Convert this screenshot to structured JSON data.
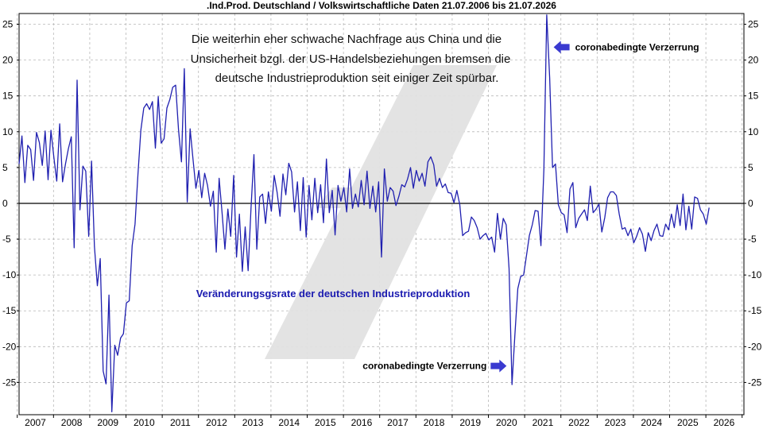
{
  "chart_data": {
    "type": "line",
    "title": ".Ind.Prod. Deutschland / Volkswirtschaftliche Daten 21.07.2006 bis 21.07.2026",
    "note_lines": [
      "Die weiterhin eher schwache Nachfrage aus China und die",
      "Unsicherheit bzgl. der US-Handelsbeziehungen bremsen die",
      "deutsche Industrieproduktion seit einiger Zeit spürbar."
    ],
    "series_label": "Veränderungsgsrate der deutschen Industrieproduktion",
    "annotations": [
      {
        "text": "coronabedingte Verzerrung",
        "x": 2021.3,
        "y": 21.8,
        "arrow": "left"
      },
      {
        "text": "coronabedingte Verzerrung",
        "x": 2020.0,
        "y": -22.7,
        "arrow": "right"
      }
    ],
    "xlim": [
      2006.55,
      2026.55
    ],
    "ylim": [
      -29.5,
      26.5
    ],
    "x_ticks": [
      {
        "label": "2007",
        "x": 2007.0
      },
      {
        "label": "2008",
        "x": 2008.0
      },
      {
        "label": "2009",
        "x": 2009.0
      },
      {
        "label": "2010",
        "x": 2010.0
      },
      {
        "label": "2011",
        "x": 2011.0
      },
      {
        "label": "2012",
        "x": 2012.0
      },
      {
        "label": "2013",
        "x": 2013.0
      },
      {
        "label": "2014",
        "x": 2014.0
      },
      {
        "label": "2015",
        "x": 2015.0
      },
      {
        "label": "2016",
        "x": 2016.0
      },
      {
        "label": "2017",
        "x": 2017.0
      },
      {
        "label": "2018",
        "x": 2018.0
      },
      {
        "label": "2019",
        "x": 2019.0
      },
      {
        "label": "2020",
        "x": 2020.0
      },
      {
        "label": "2021",
        "x": 2021.0
      },
      {
        "label": "2022",
        "x": 2022.0
      },
      {
        "label": "2023",
        "x": 2023.0
      },
      {
        "label": "2024",
        "x": 2024.0
      },
      {
        "label": "2025",
        "x": 2025.0
      },
      {
        "label": "2026",
        "x": 2026.0
      }
    ],
    "x_grid": [
      2006.5,
      2007.5,
      2008.5,
      2009.5,
      2010.5,
      2011.5,
      2012.5,
      2013.5,
      2014.5,
      2015.5,
      2016.5,
      2017.5,
      2018.5,
      2019.5,
      2020.5,
      2021.5,
      2022.5,
      2023.5,
      2024.5,
      2025.5,
      2026.5
    ],
    "y_ticks": [
      {
        "label": "25",
        "y": 25
      },
      {
        "label": "20",
        "y": 20
      },
      {
        "label": "15",
        "y": 15
      },
      {
        "label": "10",
        "y": 10
      },
      {
        "label": "5",
        "y": 5
      },
      {
        "label": "0",
        "y": 0
      },
      {
        "label": "-5",
        "y": -5
      },
      {
        "label": "-10",
        "y": -10
      },
      {
        "label": "-15",
        "y": -15
      },
      {
        "label": "-20",
        "y": -20
      },
      {
        "label": "-25",
        "y": -25
      }
    ],
    "grid": true,
    "zero_line": true,
    "line_color": "#2020b0",
    "series": [
      {
        "name": "",
        "points": [
          [
            2006.55,
            5.5
          ],
          [
            2006.63,
            9.4
          ],
          [
            2006.71,
            2.9
          ],
          [
            2006.79,
            8.1
          ],
          [
            2006.87,
            7.5
          ],
          [
            2006.95,
            3.2
          ],
          [
            2007.03,
            9.9
          ],
          [
            2007.11,
            8.5
          ],
          [
            2007.19,
            5.3
          ],
          [
            2007.27,
            10.1
          ],
          [
            2007.35,
            3.3
          ],
          [
            2007.43,
            10.2
          ],
          [
            2007.51,
            6.4
          ],
          [
            2007.59,
            3.1
          ],
          [
            2007.67,
            11.1
          ],
          [
            2007.75,
            3.0
          ],
          [
            2007.83,
            5.5
          ],
          [
            2007.91,
            7.6
          ],
          [
            2007.99,
            9.3
          ],
          [
            2008.07,
            -6.2
          ],
          [
            2008.15,
            17.2
          ],
          [
            2008.23,
            -0.9
          ],
          [
            2008.31,
            5.2
          ],
          [
            2008.39,
            4.5
          ],
          [
            2008.47,
            -4.6
          ],
          [
            2008.55,
            5.9
          ],
          [
            2008.63,
            -6.0
          ],
          [
            2008.71,
            -11.5
          ],
          [
            2008.79,
            -7.7
          ],
          [
            2008.87,
            -23.4
          ],
          [
            2008.95,
            -25.2
          ],
          [
            2009.03,
            -12.8
          ],
          [
            2009.11,
            -29.1
          ],
          [
            2009.19,
            -19.8
          ],
          [
            2009.27,
            -21.2
          ],
          [
            2009.35,
            -18.8
          ],
          [
            2009.43,
            -18.2
          ],
          [
            2009.51,
            -13.9
          ],
          [
            2009.59,
            -13.6
          ],
          [
            2009.67,
            -5.9
          ],
          [
            2009.75,
            -2.9
          ],
          [
            2009.83,
            4.1
          ],
          [
            2009.91,
            10.2
          ],
          [
            2009.99,
            13.3
          ],
          [
            2010.07,
            13.9
          ],
          [
            2010.15,
            13.1
          ],
          [
            2010.23,
            14.2
          ],
          [
            2010.31,
            7.7
          ],
          [
            2010.39,
            14.9
          ],
          [
            2010.47,
            8.4
          ],
          [
            2010.55,
            9.0
          ],
          [
            2010.63,
            13.3
          ],
          [
            2010.71,
            14.5
          ],
          [
            2010.79,
            16.2
          ],
          [
            2010.87,
            16.5
          ],
          [
            2010.95,
            10.3
          ],
          [
            2011.03,
            5.8
          ],
          [
            2011.11,
            18.8
          ],
          [
            2011.19,
            0.2
          ],
          [
            2011.27,
            10.4
          ],
          [
            2011.35,
            6.1
          ],
          [
            2011.43,
            2.1
          ],
          [
            2011.51,
            4.6
          ],
          [
            2011.59,
            0.8
          ],
          [
            2011.67,
            4.2
          ],
          [
            2011.75,
            2.5
          ],
          [
            2011.83,
            -0.4
          ],
          [
            2011.91,
            1.7
          ],
          [
            2011.99,
            -6.8
          ],
          [
            2012.07,
            3.5
          ],
          [
            2012.15,
            -1.3
          ],
          [
            2012.23,
            -6.4
          ],
          [
            2012.31,
            -0.8
          ],
          [
            2012.39,
            -4.6
          ],
          [
            2012.47,
            3.9
          ],
          [
            2012.55,
            -7.5
          ],
          [
            2012.63,
            -1.5
          ],
          [
            2012.71,
            -9.5
          ],
          [
            2012.79,
            -3.3
          ],
          [
            2012.87,
            -9.4
          ],
          [
            2012.95,
            -0.7
          ],
          [
            2013.03,
            6.8
          ],
          [
            2013.11,
            -6.4
          ],
          [
            2013.19,
            0.9
          ],
          [
            2013.27,
            1.3
          ],
          [
            2013.35,
            -2.8
          ],
          [
            2013.43,
            1.6
          ],
          [
            2013.51,
            -1.1
          ],
          [
            2013.59,
            3.9
          ],
          [
            2013.67,
            1.5
          ],
          [
            2013.75,
            -1.8
          ],
          [
            2013.83,
            4.1
          ],
          [
            2013.91,
            1.2
          ],
          [
            2013.99,
            5.6
          ],
          [
            2014.07,
            4.4
          ],
          [
            2014.15,
            -1.2
          ],
          [
            2014.23,
            3.0
          ],
          [
            2014.31,
            -3.8
          ],
          [
            2014.39,
            3.6
          ],
          [
            2014.47,
            -4.7
          ],
          [
            2014.55,
            2.5
          ],
          [
            2014.63,
            -2.3
          ],
          [
            2014.71,
            3.5
          ],
          [
            2014.79,
            -1.3
          ],
          [
            2014.87,
            2.6
          ],
          [
            2014.95,
            -2.7
          ],
          [
            2015.03,
            6.2
          ],
          [
            2015.11,
            -1.3
          ],
          [
            2015.19,
            1.8
          ],
          [
            2015.27,
            -4.4
          ],
          [
            2015.35,
            2.5
          ],
          [
            2015.43,
            0.3
          ],
          [
            2015.51,
            2.2
          ],
          [
            2015.59,
            -1.2
          ],
          [
            2015.67,
            4.8
          ],
          [
            2015.75,
            -0.7
          ],
          [
            2015.83,
            1.3
          ],
          [
            2015.91,
            -0.5
          ],
          [
            2015.99,
            3.2
          ],
          [
            2016.07,
            -0.2
          ],
          [
            2016.15,
            4.5
          ],
          [
            2016.23,
            -0.7
          ],
          [
            2016.31,
            2.4
          ],
          [
            2016.39,
            -1.2
          ],
          [
            2016.47,
            3.0
          ],
          [
            2016.55,
            -7.5
          ],
          [
            2016.63,
            4.8
          ],
          [
            2016.71,
            0.3
          ],
          [
            2016.79,
            2.2
          ],
          [
            2016.87,
            1.7
          ],
          [
            2016.95,
            -0.3
          ],
          [
            2017.03,
            1.0
          ],
          [
            2017.11,
            2.6
          ],
          [
            2017.19,
            2.3
          ],
          [
            2017.27,
            3.4
          ],
          [
            2017.35,
            5.0
          ],
          [
            2017.43,
            2.1
          ],
          [
            2017.51,
            4.6
          ],
          [
            2017.59,
            3.1
          ],
          [
            2017.67,
            4.2
          ],
          [
            2017.75,
            2.4
          ],
          [
            2017.83,
            5.8
          ],
          [
            2017.91,
            6.5
          ],
          [
            2017.99,
            5.4
          ],
          [
            2018.07,
            2.4
          ],
          [
            2018.15,
            3.5
          ],
          [
            2018.23,
            2.2
          ],
          [
            2018.31,
            2.7
          ],
          [
            2018.39,
            1.5
          ],
          [
            2018.47,
            1.4
          ],
          [
            2018.55,
            0.1
          ],
          [
            2018.63,
            1.8
          ],
          [
            2018.71,
            -0.2
          ],
          [
            2018.79,
            -4.5
          ],
          [
            2018.87,
            -4.1
          ],
          [
            2018.95,
            -3.9
          ],
          [
            2019.03,
            -1.9
          ],
          [
            2019.11,
            -2.4
          ],
          [
            2019.19,
            -3.4
          ],
          [
            2019.27,
            -5.0
          ],
          [
            2019.35,
            -4.5
          ],
          [
            2019.43,
            -4.2
          ],
          [
            2019.51,
            -5.1
          ],
          [
            2019.59,
            -4.7
          ],
          [
            2019.67,
            -6.8
          ],
          [
            2019.75,
            -1.4
          ],
          [
            2019.83,
            -5.0
          ],
          [
            2019.91,
            -2.1
          ],
          [
            2019.99,
            -3.0
          ],
          [
            2020.07,
            -9.1
          ],
          [
            2020.15,
            -25.3
          ],
          [
            2020.23,
            -18.4
          ],
          [
            2020.31,
            -11.9
          ],
          [
            2020.39,
            -10.2
          ],
          [
            2020.47,
            -10.0
          ],
          [
            2020.55,
            -7.3
          ],
          [
            2020.63,
            -4.5
          ],
          [
            2020.71,
            -3.0
          ],
          [
            2020.79,
            -1.0
          ],
          [
            2020.87,
            -1.1
          ],
          [
            2020.95,
            -5.9
          ],
          [
            2021.03,
            4.7
          ],
          [
            2021.11,
            26.3
          ],
          [
            2021.19,
            17.5
          ],
          [
            2021.27,
            5.0
          ],
          [
            2021.35,
            5.5
          ],
          [
            2021.43,
            -0.2
          ],
          [
            2021.51,
            -1.3
          ],
          [
            2021.59,
            -1.6
          ],
          [
            2021.67,
            -4.1
          ],
          [
            2021.75,
            2.0
          ],
          [
            2021.83,
            2.9
          ],
          [
            2021.91,
            -3.4
          ],
          [
            2021.99,
            -2.1
          ],
          [
            2022.07,
            -1.5
          ],
          [
            2022.15,
            -0.9
          ],
          [
            2022.23,
            -2.4
          ],
          [
            2022.31,
            2.4
          ],
          [
            2022.39,
            -1.3
          ],
          [
            2022.47,
            -0.8
          ],
          [
            2022.55,
            -0.1
          ],
          [
            2022.63,
            -4.0
          ],
          [
            2022.71,
            -2.0
          ],
          [
            2022.79,
            0.8
          ],
          [
            2022.87,
            1.6
          ],
          [
            2022.95,
            1.6
          ],
          [
            2023.03,
            1.1
          ],
          [
            2023.11,
            -1.5
          ],
          [
            2023.19,
            -3.6
          ],
          [
            2023.27,
            -3.4
          ],
          [
            2023.35,
            -4.5
          ],
          [
            2023.43,
            -3.6
          ],
          [
            2023.51,
            -5.5
          ],
          [
            2023.59,
            -4.6
          ],
          [
            2023.67,
            -3.4
          ],
          [
            2023.75,
            -4.3
          ],
          [
            2023.83,
            -6.7
          ],
          [
            2023.91,
            -4.1
          ],
          [
            2023.99,
            -5.2
          ],
          [
            2024.07,
            -3.8
          ],
          [
            2024.15,
            -2.9
          ],
          [
            2024.23,
            -4.5
          ],
          [
            2024.31,
            -4.6
          ],
          [
            2024.39,
            -2.9
          ],
          [
            2024.47,
            -3.7
          ],
          [
            2024.55,
            -1.5
          ],
          [
            2024.63,
            -3.4
          ],
          [
            2024.71,
            -0.2
          ],
          [
            2024.79,
            -3.1
          ],
          [
            2024.87,
            1.3
          ],
          [
            2024.95,
            -3.7
          ],
          [
            2025.03,
            -0.4
          ],
          [
            2025.11,
            -3.6
          ],
          [
            2025.19,
            0.9
          ],
          [
            2025.27,
            0.7
          ],
          [
            2025.35,
            -0.9
          ],
          [
            2025.43,
            -1.5
          ],
          [
            2025.51,
            -2.9
          ],
          [
            2025.59,
            -0.6
          ]
        ]
      }
    ]
  }
}
